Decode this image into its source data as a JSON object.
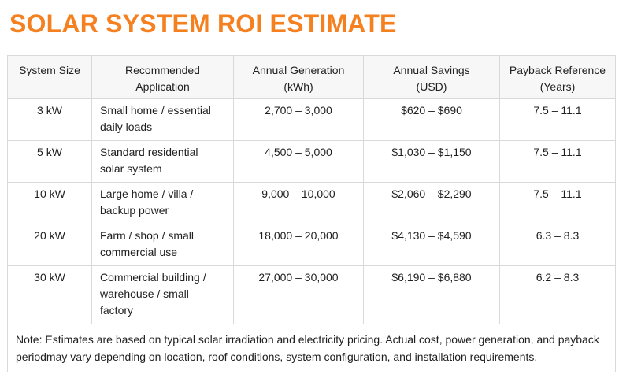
{
  "page": {
    "title": "SOLAR SYSTEM ROI ESTIMATE"
  },
  "colors": {
    "title": "#f4801f",
    "header_bg": "#f7f7f7",
    "border": "#d9d9d9",
    "text": "#1f1f1f"
  },
  "table": {
    "headers": [
      [
        "System Size"
      ],
      [
        "Recommended",
        "Application"
      ],
      [
        "Annual Generation",
        "(kWh)"
      ],
      [
        "Annual Savings",
        "(USD)"
      ],
      [
        "Payback Reference",
        "(Years)"
      ]
    ],
    "rows": [
      {
        "size": "3 kW",
        "application": [
          "Small home / essential",
          "daily loads"
        ],
        "generation": "2,700 – 3,000",
        "savings": "$620 – $690",
        "payback": "7.5 – 11.1"
      },
      {
        "size": "5 kW",
        "application": [
          "Standard residential",
          "solar system"
        ],
        "generation": "4,500 – 5,000",
        "savings": "$1,030 – $1,150",
        "payback": "7.5 – 11.1"
      },
      {
        "size": "10 kW",
        "application": [
          "Large home / villa /",
          "backup power"
        ],
        "generation": "9,000 – 10,000",
        "savings": "$2,060 – $2,290",
        "payback": "7.5 – 11.1"
      },
      {
        "size": "20 kW",
        "application": [
          "Farm / shop / small",
          "commercial use"
        ],
        "generation": "18,000 – 20,000",
        "savings": "$4,130 – $4,590",
        "payback": "6.3 – 8.3"
      },
      {
        "size": "30 kW",
        "application": [
          "Commercial building /",
          "warehouse / small",
          "factory"
        ],
        "generation": "27,000 – 30,000",
        "savings": "$6,190 – $6,880",
        "payback": "6.2 – 8.3"
      }
    ],
    "note": [
      "Note: Estimates are based on typical solar irradiation and electricity pricing. Actual cost, power generation, and payback",
      "periodmay vary depending on location, roof conditions, system configuration, and installation requirements."
    ]
  }
}
